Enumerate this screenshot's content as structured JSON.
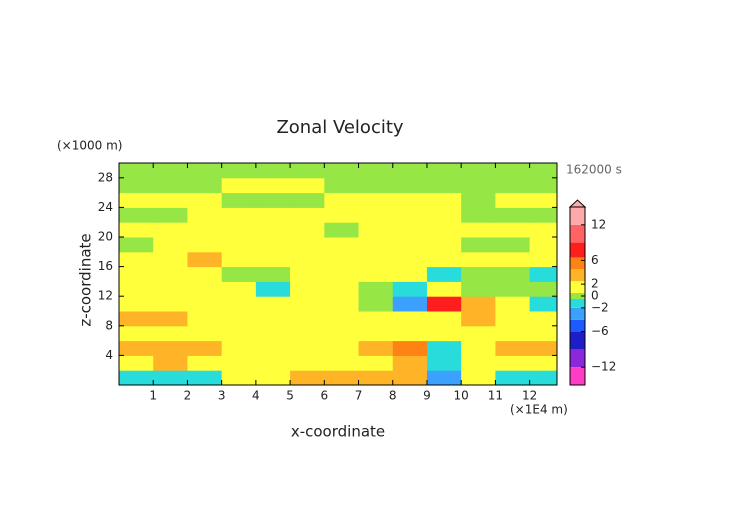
{
  "chart_data": {
    "type": "contour",
    "title": "Zonal Velocity",
    "x_label": "x-coordinate",
    "y_label": "z-coordinate",
    "x_unit": "(×1E4 m)",
    "y_unit": "(×1000 m)",
    "time_label": "162000 s",
    "xlim": [
      0,
      12.8
    ],
    "ylim": [
      0,
      30
    ],
    "xticks": [
      1,
      2,
      3,
      4,
      5,
      6,
      7,
      8,
      9,
      10,
      11,
      12
    ],
    "yticks": [
      4,
      8,
      12,
      16,
      20,
      24,
      28
    ],
    "x": [
      0.5,
      1.5,
      2.5,
      3.5,
      4.5,
      5.5,
      6.5,
      7.5,
      8.5,
      9.5,
      10.5,
      11.5,
      12.5
    ],
    "z": [
      1,
      3,
      5,
      7,
      9,
      11,
      13,
      15,
      17,
      19,
      21,
      23,
      25,
      27,
      29
    ],
    "values": [
      [
        -2,
        -2,
        -1,
        1,
        2,
        3,
        3,
        3,
        3,
        -4,
        1,
        -1,
        -2
      ],
      [
        2,
        3,
        1,
        1,
        1,
        1,
        1,
        2,
        3,
        -2,
        1,
        2,
        1
      ],
      [
        3,
        3,
        3,
        1,
        1,
        1,
        2,
        3,
        5,
        -2,
        2,
        3,
        3
      ],
      [
        1,
        1,
        1,
        1,
        1,
        1,
        1,
        2,
        2,
        1,
        2,
        1,
        1
      ],
      [
        3,
        3,
        1,
        1,
        1,
        1,
        1,
        1,
        1,
        2,
        3,
        1,
        1
      ],
      [
        1,
        1,
        1,
        1,
        1,
        1,
        1,
        0,
        -4,
        7,
        3,
        1,
        -1
      ],
      [
        1,
        1,
        1,
        1,
        -1,
        1,
        1,
        0,
        -2,
        2,
        0,
        0,
        0
      ],
      [
        1,
        1,
        1,
        0,
        0,
        1,
        1,
        1,
        1,
        -1,
        0,
        0,
        -1
      ],
      [
        1,
        1,
        3,
        1,
        1,
        2,
        1,
        1,
        2,
        1,
        1,
        1,
        1
      ],
      [
        0,
        1,
        1,
        1,
        1,
        1,
        1,
        1,
        1,
        1,
        0,
        0,
        1
      ],
      [
        1,
        1,
        1,
        1,
        1,
        1,
        0,
        1,
        1,
        1,
        1,
        1,
        1
      ],
      [
        0,
        0,
        1,
        1,
        1,
        1,
        1,
        1,
        1,
        1,
        0,
        0,
        0
      ],
      [
        1,
        1,
        1,
        0,
        0,
        0,
        1,
        1,
        1,
        1,
        0,
        1,
        1
      ],
      [
        0,
        0,
        0,
        1,
        1,
        1,
        0,
        0,
        0,
        0,
        0,
        0,
        0
      ],
      [
        0,
        0,
        0,
        0,
        0,
        0,
        0,
        0,
        0,
        0,
        0,
        0,
        0
      ]
    ],
    "levels": [
      -15,
      -12,
      -9,
      -6,
      -4,
      -2,
      -0.5,
      0.5,
      2.5,
      4.5,
      6.5,
      9,
      12,
      15
    ],
    "colors": [
      "#ff3cc8",
      "#8c28dc",
      "#1e1ec8",
      "#1e5aff",
      "#3ca0ff",
      "#28dcdc",
      "#96e646",
      "#ffff3c",
      "#ffb428",
      "#ff8214",
      "#ff1e1e",
      "#ff6464",
      "#ffaaaa"
    ],
    "colorbar_ticks": [
      12,
      6,
      2,
      0,
      {
        "value": -2,
        "label": "−2"
      },
      {
        "value": -6,
        "label": "−6"
      },
      {
        "value": -12,
        "label": "−12"
      }
    ]
  }
}
